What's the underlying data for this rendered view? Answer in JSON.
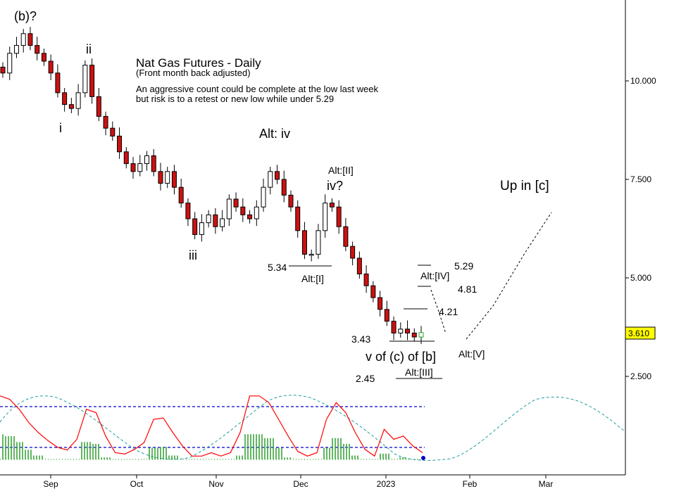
{
  "chart_data": {
    "type": "candlestick",
    "title": "Nat Gas Futures - Daily",
    "subtitle": "(Front month back adjusted)",
    "note_lines": [
      "An aggressive count could be complete at the low last week",
      "but risk is to a retest or new low while under 5.29"
    ],
    "y_ticks": [
      "10.000",
      "7.500",
      "5.000",
      "2.500"
    ],
    "y_tick_values": [
      10,
      7.5,
      5,
      2.5
    ],
    "x_ticks": [
      "Sep",
      "Oct",
      "Nov",
      "Dec",
      "2023",
      "Feb",
      "Mar"
    ],
    "x_tick_dates": [
      "2022-09-01",
      "2022-10-01",
      "2022-11-01",
      "2022-12-01",
      "2023-01-01",
      "2023-02-01",
      "2023-03-01"
    ],
    "last_price": "3.610",
    "key_levels": [
      {
        "label": "5.34",
        "value": 5.34
      },
      {
        "label": "5.29",
        "value": 5.29
      },
      {
        "label": "4.81",
        "value": 4.81
      },
      {
        "label": "4.21",
        "value": 4.21
      },
      {
        "label": "3.43",
        "value": 3.43
      },
      {
        "label": "2.45",
        "value": 2.45
      }
    ],
    "wave_labels": [
      "(b)?",
      "i",
      "ii",
      "iii",
      "Alt: iv",
      "iv?",
      "Alt:[II]",
      "Alt:[I]",
      "Alt:[IV]",
      "Alt:[V]",
      "Alt:[III]",
      "v of (c) of [b]",
      "Up in [c]"
    ],
    "closes": [
      10.2,
      10.7,
      10.9,
      11.2,
      10.9,
      10.7,
      10.5,
      10.2,
      9.7,
      9.4,
      9.3,
      9.7,
      10.4,
      9.6,
      9.1,
      8.8,
      8.6,
      8.2,
      7.9,
      7.7,
      7.9,
      8.1,
      7.7,
      7.4,
      7.7,
      7.3,
      6.9,
      6.5,
      6.1,
      6.4,
      6.6,
      6.3,
      6.5,
      7.0,
      6.8,
      6.6,
      6.5,
      6.8,
      7.3,
      7.7,
      7.5,
      7.1,
      6.8,
      6.2,
      5.6,
      5.6,
      6.2,
      6.9,
      6.8,
      6.3,
      5.8,
      5.5,
      5.1,
      4.8,
      4.5,
      4.2,
      3.9,
      3.6,
      3.7,
      3.6,
      3.5,
      3.61
    ],
    "oscillator": {
      "upper_level": 80,
      "lower_level": 20,
      "red_line": [
        95,
        90,
        75,
        55,
        40,
        28,
        18,
        14,
        30,
        75,
        70,
        35,
        10,
        8,
        15,
        25,
        60,
        62,
        40,
        20,
        5,
        5,
        10,
        5,
        10,
        40,
        95,
        95,
        85,
        60,
        35,
        12,
        5,
        10,
        60,
        85,
        70,
        40,
        15,
        5,
        45,
        30,
        35,
        20,
        10
      ]
    }
  }
}
